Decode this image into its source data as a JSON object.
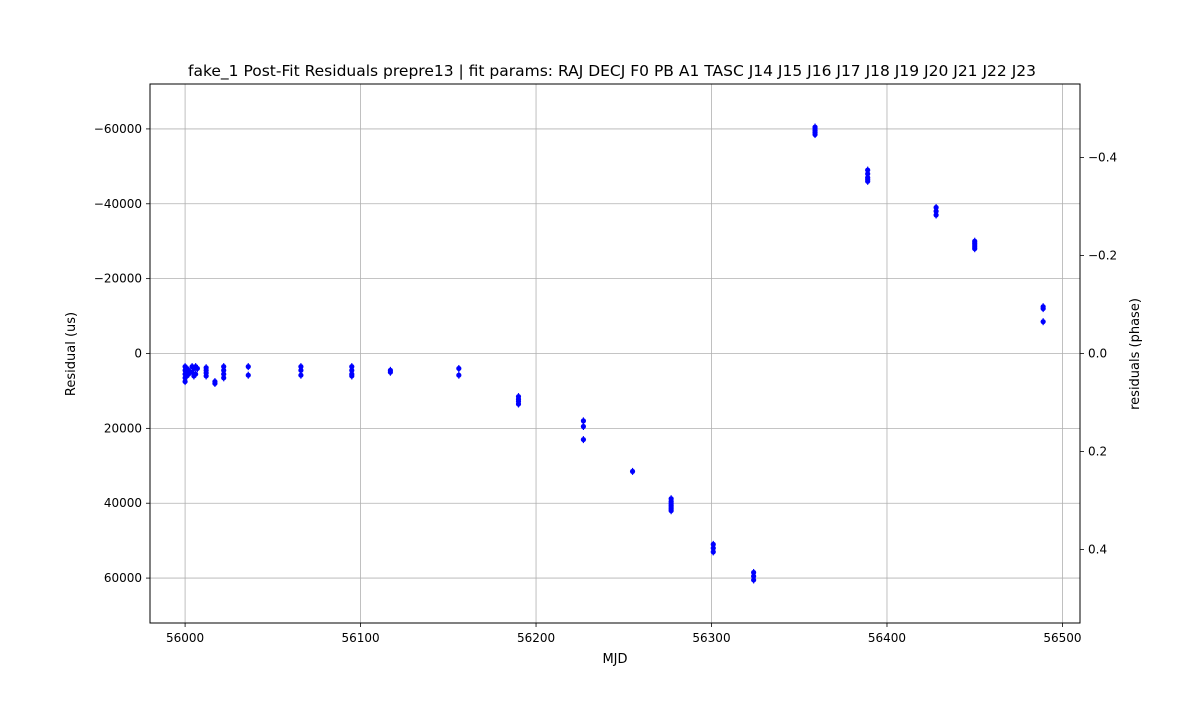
{
  "chart_data": {
    "type": "scatter",
    "title": "fake_1 Post-Fit Residuals prepre13 | fit params: RAJ DECJ F0 PB A1 TASC J14 J15 J16 J17 J18 J19 J20 J21 J22 J23",
    "xlabel": "MJD",
    "ylabel": "Residual (us)",
    "y2label": "residuals (phase)",
    "xlim": [
      55980,
      56510
    ],
    "ylim": [
      72000,
      -72000
    ],
    "y2lim": [
      0.55,
      -0.55
    ],
    "y_inverted": true,
    "grid": true,
    "color": "#0000ff",
    "x_ticks": [
      56000,
      56100,
      56200,
      56300,
      56400,
      56500
    ],
    "y_ticks": [
      -60000,
      -40000,
      -20000,
      0,
      20000,
      40000,
      60000
    ],
    "y2_ticks": [
      -0.4,
      -0.2,
      0.0,
      0.2,
      0.4
    ],
    "x_tick_labels": [
      "56000",
      "56100",
      "56200",
      "56300",
      "56400",
      "56500"
    ],
    "y_tick_labels": [
      "−60000",
      "−40000",
      "−20000",
      "0",
      "20000",
      "40000",
      "60000"
    ],
    "y2_tick_labels": [
      "−0.4",
      "−0.2",
      "0.0",
      "0.2",
      "0.4"
    ],
    "series": [
      {
        "x": [
          56000,
          56000,
          56000,
          56000,
          56000,
          56001,
          56001,
          56001,
          56002,
          56002,
          56004,
          56004,
          56005,
          56005,
          56006,
          56006,
          56007,
          56012,
          56012,
          56012,
          56012,
          56017,
          56017,
          56022,
          56022,
          56022,
          56022,
          56036,
          56036,
          56066,
          56066,
          56066,
          56095,
          56095,
          56095,
          56095,
          56117,
          56117,
          56156,
          56156,
          56190,
          56190,
          56190,
          56190,
          56227,
          56227,
          56227,
          56255,
          56277,
          56277,
          56277,
          56277,
          56277,
          56277,
          56277,
          56301,
          56301,
          56301,
          56324,
          56324,
          56324,
          56359,
          56359,
          56359,
          56359,
          56359,
          56389,
          56389,
          56389,
          56389,
          56389,
          56428,
          56428,
          56428,
          56450,
          56450,
          56450,
          56450,
          56450,
          56489,
          56489,
          56489
        ],
        "y": [
          3500,
          4500,
          5500,
          6500,
          7500,
          4000,
          5000,
          6000,
          4500,
          5500,
          3500,
          5000,
          4000,
          6000,
          3500,
          5500,
          4000,
          3800,
          4500,
          5200,
          6000,
          7500,
          8000,
          3500,
          4500,
          5500,
          6500,
          3500,
          5800,
          3500,
          4500,
          5800,
          3500,
          4500,
          5500,
          6000,
          4500,
          5000,
          4000,
          5800,
          11500,
          12200,
          12800,
          13500,
          18000,
          19500,
          23000,
          31500,
          38800,
          39500,
          40000,
          40500,
          41000,
          41500,
          42000,
          51000,
          52000,
          53000,
          58500,
          59500,
          60500,
          -60500,
          -60000,
          -59500,
          -59000,
          -58500,
          -49000,
          -48000,
          -47000,
          -46500,
          -46000,
          -39000,
          -38000,
          -37000,
          -30000,
          -29500,
          -29000,
          -28500,
          -28000,
          -12500,
          -12000,
          -8500
        ]
      }
    ]
  }
}
